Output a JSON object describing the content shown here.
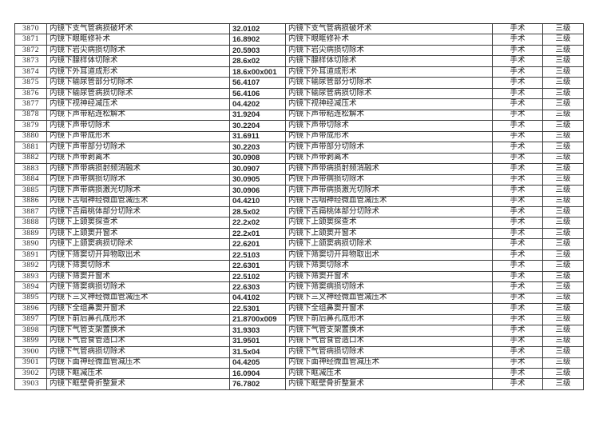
{
  "page": {
    "background_color": "#ffffff",
    "text_color": "#222222",
    "border_color": "#3f3f3f"
  },
  "table": {
    "columns": [
      {
        "key": "seq",
        "align": "center"
      },
      {
        "key": "procedure_name",
        "align": "left"
      },
      {
        "key": "code",
        "align": "left"
      },
      {
        "key": "procedure_name_repeat",
        "align": "left"
      },
      {
        "key": "category",
        "align": "center"
      },
      {
        "key": "level",
        "align": "center"
      }
    ],
    "rows": [
      [
        "3870",
        "内镜下支气管病损破坏术",
        "32.0102",
        "内镜下支气管病损破坏术",
        "手术",
        "三级"
      ],
      [
        "3871",
        "内镜下眼眶修补术",
        "16.8902",
        "内镜下眼眶修补术",
        "手术",
        "三级"
      ],
      [
        "3872",
        "内镜下岩尖病损切除术",
        "20.5903",
        "内镜下岩尖病损切除术",
        "手术",
        "三级"
      ],
      [
        "3873",
        "内镜下腺样体切除术",
        "28.6x02",
        "内镜下腺样体切除术",
        "手术",
        "三级"
      ],
      [
        "3874",
        "内镜下外耳道成形术",
        "18.6x00x001",
        "内镜下外耳道成形术",
        "手术",
        "三级"
      ],
      [
        "3875",
        "内镜下输尿管部分切除术",
        "56.4107",
        "内镜下输尿管部分切除术",
        "手术",
        "三级"
      ],
      [
        "3876",
        "内镜下输尿管病损切除术",
        "56.4106",
        "内镜下输尿管病损切除术",
        "手术",
        "三级"
      ],
      [
        "3877",
        "内镜下视神经减压术",
        "04.4202",
        "内镜下视神经减压术",
        "手术",
        "三级"
      ],
      [
        "3878",
        "内镜下声带粘连松解术",
        "31.9204",
        "内镜下声带粘连松解术",
        "手术",
        "三级"
      ],
      [
        "3879",
        "内镜下声带切除术",
        "30.2204",
        "内镜下声带切除术",
        "手术",
        "三级"
      ],
      [
        "3880",
        "内镜下声带成形术",
        "31.6911",
        "内镜下声带成形术",
        "手术",
        "三级"
      ],
      [
        "3881",
        "内镜下声带部分切除术",
        "30.2203",
        "内镜下声带部分切除术",
        "手术",
        "三级"
      ],
      [
        "3882",
        "内镜下声带剥离术",
        "30.0908",
        "内镜下声带剥离术",
        "手术",
        "三级"
      ],
      [
        "3883",
        "内镜下声带病损射频消融术",
        "30.0907",
        "内镜下声带病损射频消融术",
        "手术",
        "三级"
      ],
      [
        "3884",
        "内镜下声带病损切除术",
        "30.0905",
        "内镜下声带病损切除术",
        "手术",
        "三级"
      ],
      [
        "3885",
        "内镜下声带病损激光切除术",
        "30.0906",
        "内镜下声带病损激光切除术",
        "手术",
        "三级"
      ],
      [
        "3886",
        "内镜下舌咽神经微血管减压术",
        "04.4210",
        "内镜下舌咽神经微血管减压术",
        "手术",
        "三级"
      ],
      [
        "3887",
        "内镜下舌扁桃体部分切除术",
        "28.5x02",
        "内镜下舌扁桃体部分切除术",
        "手术",
        "三级"
      ],
      [
        "3888",
        "内镜下上颌窦探查术",
        "22.2x02",
        "内镜下上颌窦探查术",
        "手术",
        "三级"
      ],
      [
        "3889",
        "内镜下上颌窦开窗术",
        "22.2x01",
        "内镜下上颌窦开窗术",
        "手术",
        "三级"
      ],
      [
        "3890",
        "内镜下上颌窦病损切除术",
        "22.6201",
        "内镜下上颌窦病损切除术",
        "手术",
        "三级"
      ],
      [
        "3891",
        "内镜下筛窦切开异物取出术",
        "22.5103",
        "内镜下筛窦切开异物取出术",
        "手术",
        "三级"
      ],
      [
        "3892",
        "内镜下筛窦切除术",
        "22.6301",
        "内镜下筛窦切除术",
        "手术",
        "三级"
      ],
      [
        "3893",
        "内镜下筛窦开窗术",
        "22.5102",
        "内镜下筛窦开窗术",
        "手术",
        "三级"
      ],
      [
        "3894",
        "内镜下筛窦病损切除术",
        "22.6303",
        "内镜下筛窦病损切除术",
        "手术",
        "三级"
      ],
      [
        "3895",
        "内镜下三叉神经微血管减压术",
        "04.4102",
        "内镜下三叉神经微血管减压术",
        "手术",
        "三级"
      ],
      [
        "3896",
        "内镜下全组鼻窦开窗术",
        "22.5301",
        "内镜下全组鼻窦开窗术",
        "手术",
        "三级"
      ],
      [
        "3897",
        "内镜下前后鼻孔成形术",
        "21.8700x009",
        "内镜下前后鼻孔成形术",
        "手术",
        "三级"
      ],
      [
        "3898",
        "内镜下气管支架置换术",
        "31.9303",
        "内镜下气管支架置换术",
        "手术",
        "三级"
      ],
      [
        "3899",
        "内镜下气管食管造口术",
        "31.9501",
        "内镜下气管食管造口术",
        "手术",
        "三级"
      ],
      [
        "3900",
        "内镜下气管病损切除术",
        "31.5x04",
        "内镜下气管病损切除术",
        "手术",
        "三级"
      ],
      [
        "3901",
        "内镜下面神经微血管减压术",
        "04.4205",
        "内镜下面神经微血管减压术",
        "手术",
        "三级"
      ],
      [
        "3902",
        "内镜下眶减压术",
        "16.0904",
        "内镜下眶减压术",
        "手术",
        "三级"
      ],
      [
        "3903",
        "内镜下眶壁骨折整复术",
        "76.7802",
        "内镜下眶壁骨折整复术",
        "手术",
        "三级"
      ]
    ]
  }
}
